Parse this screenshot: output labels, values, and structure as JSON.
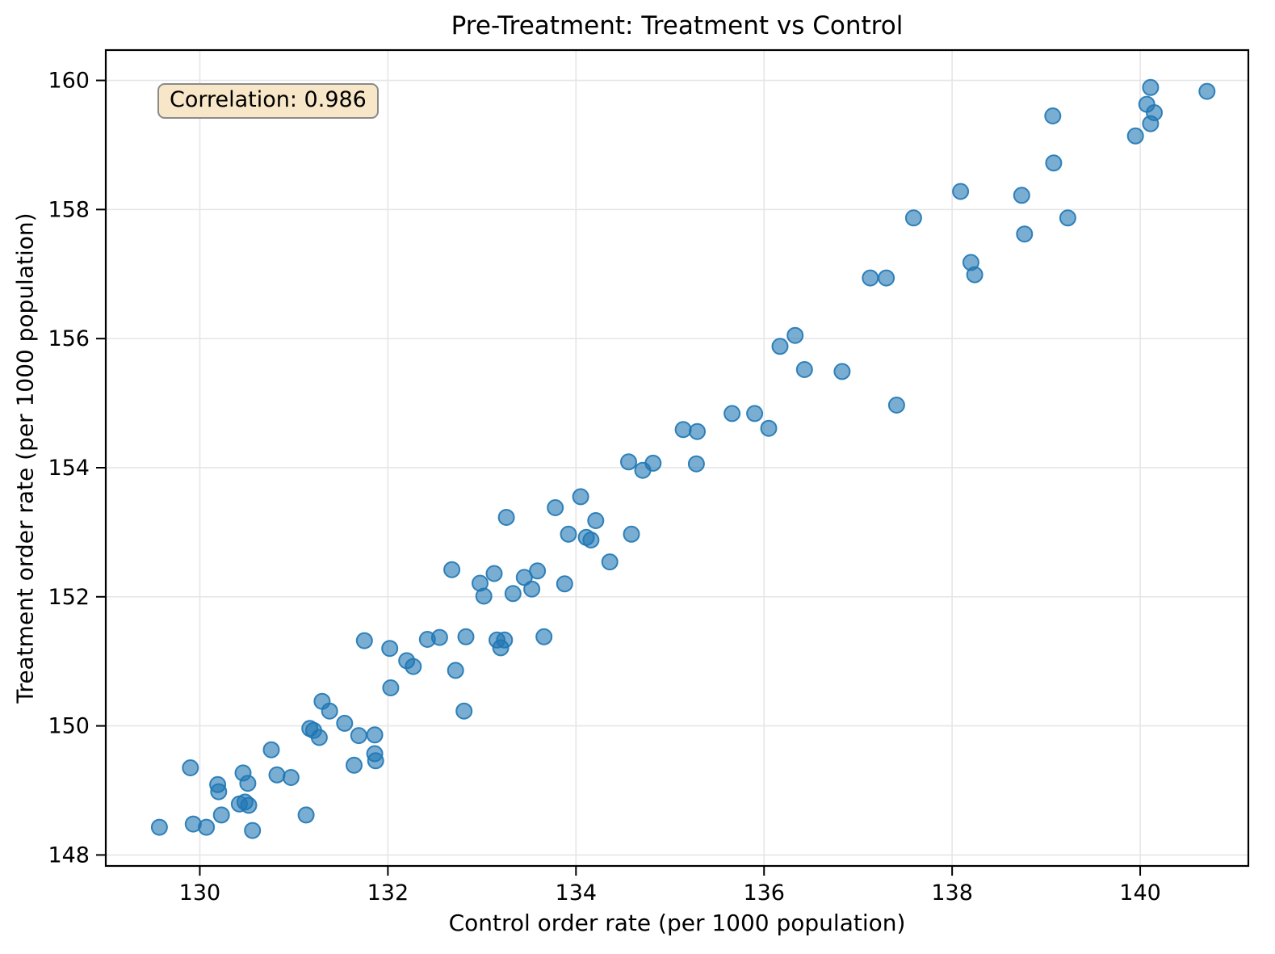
{
  "chart_data": {
    "type": "scatter",
    "title": "Pre-Treatment: Treatment vs Control",
    "xlabel": "Control order rate (per 1000 population)",
    "ylabel": "Treatment order rate (per 1000 population)",
    "annotation": {
      "text": "Correlation: 0.986",
      "bg_color": "#f7e7c8",
      "border_color": "#8a8a8a"
    },
    "xlim": [
      129.0,
      141.15
    ],
    "ylim": [
      147.83,
      160.47
    ],
    "x_ticks": [
      130,
      132,
      134,
      136,
      138,
      140
    ],
    "y_ticks": [
      148,
      150,
      152,
      154,
      156,
      158,
      160
    ],
    "grid": true,
    "grid_color": "#e6e6e6",
    "marker": {
      "color": "#1f77b4",
      "fill_opacity": 0.6,
      "edge_opacity": 0.9,
      "radius": 9.5,
      "edge_width": 2
    },
    "points": [
      [
        129.57,
        148.43
      ],
      [
        129.9,
        149.35
      ],
      [
        129.93,
        148.48
      ],
      [
        130.07,
        148.43
      ],
      [
        130.19,
        149.09
      ],
      [
        130.2,
        148.98
      ],
      [
        130.23,
        148.62
      ],
      [
        130.46,
        149.27
      ],
      [
        130.42,
        148.79
      ],
      [
        130.48,
        148.82
      ],
      [
        130.52,
        148.77
      ],
      [
        130.51,
        149.11
      ],
      [
        130.56,
        148.38
      ],
      [
        130.76,
        149.63
      ],
      [
        130.82,
        149.24
      ],
      [
        130.97,
        149.2
      ],
      [
        131.13,
        148.62
      ],
      [
        131.17,
        149.96
      ],
      [
        131.21,
        149.93
      ],
      [
        131.27,
        149.82
      ],
      [
        131.3,
        150.38
      ],
      [
        131.38,
        150.23
      ],
      [
        131.54,
        150.04
      ],
      [
        131.69,
        149.85
      ],
      [
        131.64,
        149.39
      ],
      [
        131.86,
        149.86
      ],
      [
        131.86,
        149.57
      ],
      [
        131.87,
        149.46
      ],
      [
        132.03,
        150.59
      ],
      [
        132.72,
        150.86
      ],
      [
        132.81,
        150.23
      ],
      [
        131.75,
        151.32
      ],
      [
        132.02,
        151.2
      ],
      [
        132.2,
        151.01
      ],
      [
        132.27,
        150.92
      ],
      [
        132.42,
        151.34
      ],
      [
        132.55,
        151.37
      ],
      [
        132.83,
        151.38
      ],
      [
        133.16,
        151.33
      ],
      [
        133.24,
        151.33
      ],
      [
        133.2,
        151.21
      ],
      [
        133.66,
        151.38
      ],
      [
        132.68,
        152.42
      ],
      [
        132.98,
        152.21
      ],
      [
        133.02,
        152.01
      ],
      [
        133.13,
        152.36
      ],
      [
        133.33,
        152.05
      ],
      [
        133.45,
        152.3
      ],
      [
        133.53,
        152.12
      ],
      [
        133.59,
        152.4
      ],
      [
        133.88,
        152.2
      ],
      [
        133.26,
        153.23
      ],
      [
        133.78,
        153.38
      ],
      [
        134.05,
        153.55
      ],
      [
        133.92,
        152.97
      ],
      [
        134.11,
        152.92
      ],
      [
        134.16,
        152.88
      ],
      [
        134.21,
        153.18
      ],
      [
        134.36,
        152.54
      ],
      [
        134.59,
        152.97
      ],
      [
        134.56,
        154.09
      ],
      [
        134.71,
        153.96
      ],
      [
        134.82,
        154.07
      ],
      [
        135.14,
        154.59
      ],
      [
        135.29,
        154.56
      ],
      [
        135.28,
        154.06
      ],
      [
        136.05,
        154.61
      ],
      [
        135.66,
        154.84
      ],
      [
        135.9,
        154.84
      ],
      [
        136.17,
        155.88
      ],
      [
        136.33,
        156.05
      ],
      [
        136.43,
        155.52
      ],
      [
        136.83,
        155.49
      ],
      [
        137.41,
        154.97
      ],
      [
        137.13,
        156.94
      ],
      [
        137.3,
        156.94
      ],
      [
        137.59,
        157.87
      ],
      [
        138.09,
        158.28
      ],
      [
        138.2,
        157.18
      ],
      [
        138.24,
        156.99
      ],
      [
        138.74,
        158.22
      ],
      [
        138.77,
        157.62
      ],
      [
        139.07,
        159.45
      ],
      [
        139.08,
        158.72
      ],
      [
        139.23,
        157.87
      ],
      [
        139.95,
        159.14
      ],
      [
        140.07,
        159.63
      ],
      [
        140.11,
        159.89
      ],
      [
        140.15,
        159.5
      ],
      [
        140.11,
        159.33
      ],
      [
        140.71,
        159.83
      ]
    ]
  }
}
